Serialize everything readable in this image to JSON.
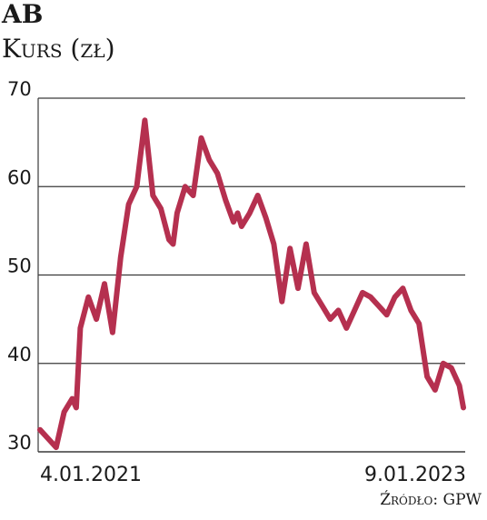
{
  "header": {
    "title": "AB",
    "subtitle": "Kurs (zł)"
  },
  "footer": {
    "source": "Źródło: GPW"
  },
  "colors": {
    "line": "#b5304f",
    "grid": "#3a3a3a",
    "text": "#1a1a1a"
  },
  "chart_data": {
    "type": "line",
    "title": "AB",
    "subtitle": "Kurs (zł)",
    "ylim": [
      30,
      70
    ],
    "yticks": [
      30,
      40,
      50,
      60,
      70
    ],
    "x_tick_labels": [
      "4.01.2021",
      "9.01.2023"
    ],
    "x_range": [
      "2021-01-04",
      "2023-01-09"
    ],
    "grid": true,
    "series": [
      {
        "x": [
          "2021-01-04",
          "2021-01-18",
          "2021-02-01",
          "2021-02-15",
          "2021-03-01",
          "2021-03-08",
          "2021-03-15",
          "2021-03-29",
          "2021-04-12",
          "2021-04-26",
          "2021-05-10",
          "2021-05-24",
          "2021-06-07",
          "2021-06-21",
          "2021-07-05",
          "2021-07-19",
          "2021-08-02",
          "2021-08-16",
          "2021-08-23",
          "2021-08-30",
          "2021-09-13",
          "2021-09-27",
          "2021-10-11",
          "2021-10-25",
          "2021-11-08",
          "2021-11-22",
          "2021-12-06",
          "2021-12-13",
          "2021-12-20",
          "2022-01-03",
          "2022-01-17",
          "2022-01-31",
          "2022-02-14",
          "2022-02-28",
          "2022-03-14",
          "2022-03-28",
          "2022-04-11",
          "2022-04-25",
          "2022-05-09",
          "2022-05-23",
          "2022-06-06",
          "2022-06-20",
          "2022-07-04",
          "2022-07-18",
          "2022-08-01",
          "2022-08-15",
          "2022-08-29",
          "2022-09-12",
          "2022-09-26",
          "2022-10-10",
          "2022-10-24",
          "2022-11-07",
          "2022-11-21",
          "2022-12-05",
          "2022-12-19",
          "2023-01-02",
          "2023-01-09"
        ],
        "values": [
          32.5,
          31.5,
          30.5,
          34.5,
          36.0,
          35.0,
          44.0,
          47.5,
          45.0,
          49.0,
          43.5,
          52.0,
          58.0,
          60.0,
          67.5,
          59.0,
          57.5,
          54.0,
          53.5,
          57.0,
          60.0,
          59.0,
          65.5,
          63.0,
          61.5,
          58.5,
          56.0,
          57.0,
          55.5,
          57.0,
          59.0,
          56.5,
          53.5,
          47.0,
          53.0,
          48.5,
          53.5,
          48.0,
          46.5,
          45.0,
          46.0,
          44.0,
          46.0,
          48.0,
          47.5,
          46.5,
          45.5,
          47.5,
          48.5,
          46.0,
          44.5,
          38.5,
          37.0,
          40.0,
          39.5,
          37.5,
          35.0
        ]
      }
    ]
  }
}
